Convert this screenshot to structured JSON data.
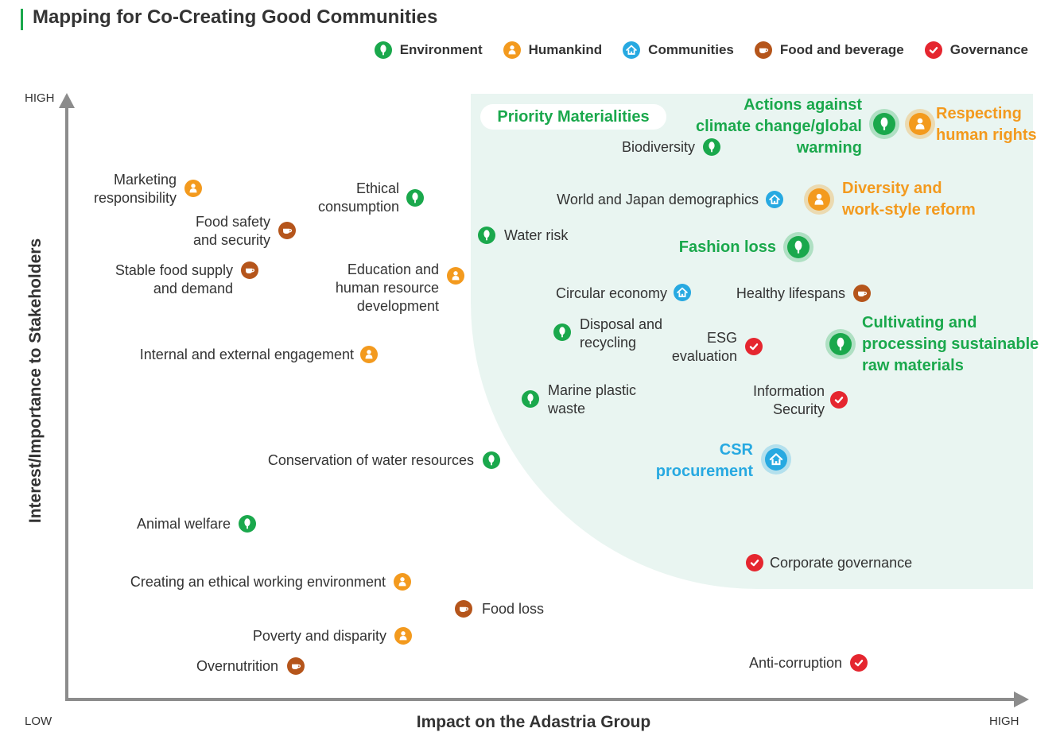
{
  "title": "Mapping for Co-Creating Good Communities",
  "colors": {
    "environment": "#1aa84c",
    "humankind": "#f39a1e",
    "communities": "#27a9e1",
    "food": "#b5551b",
    "governance": "#e5262f",
    "priority_zone": "#e9f5f1"
  },
  "legend": [
    {
      "label": "Environment",
      "category": "environment",
      "icon": "tree-icon"
    },
    {
      "label": "Humankind",
      "category": "humankind",
      "icon": "person-icon"
    },
    {
      "label": "Communities",
      "category": "communities",
      "icon": "house-icon"
    },
    {
      "label": "Food and beverage",
      "category": "food",
      "icon": "cup-icon"
    },
    {
      "label": "Governance",
      "category": "governance",
      "icon": "check-icon"
    }
  ],
  "priority_label": "Priority Materialities",
  "axes": {
    "y_label": "Interest/Importance to Stakeholders",
    "x_label": "Impact on the Adastria Group",
    "y_high": "HIGH",
    "origin_low": "LOW",
    "x_high": "HIGH"
  },
  "items": [
    {
      "label": "Actions against\nclimate change/global\nwarming",
      "category": "environment",
      "priority": true
    },
    {
      "label": "Respecting\nhuman rights",
      "category": "humankind",
      "priority": true
    },
    {
      "label": "Biodiversity",
      "category": "environment"
    },
    {
      "label": "Marketing\nresponsibility",
      "category": "humankind"
    },
    {
      "label": "Ethical\nconsumption",
      "category": "environment"
    },
    {
      "label": "World and Japan demographics",
      "category": "communities"
    },
    {
      "label": "Diversity and\nwork-style reform",
      "category": "humankind",
      "priority": true
    },
    {
      "label": "Food safety\nand security",
      "category": "food"
    },
    {
      "label": "Water risk",
      "category": "environment"
    },
    {
      "label": "Fashion loss",
      "category": "environment",
      "priority": true
    },
    {
      "label": "Stable food supply\nand demand",
      "category": "food"
    },
    {
      "label": "Education and\nhuman resource\ndevelopment",
      "category": "humankind"
    },
    {
      "label": "Circular economy",
      "category": "communities"
    },
    {
      "label": "Healthy lifespans",
      "category": "food"
    },
    {
      "label": "Disposal and\nrecycling",
      "category": "environment"
    },
    {
      "label": "ESG\nevaluation",
      "category": "governance"
    },
    {
      "label": "Cultivating and\nprocessing sustainable\nraw materials",
      "category": "environment",
      "priority": true
    },
    {
      "label": "Internal and external engagement",
      "category": "humankind"
    },
    {
      "label": "Marine plastic\nwaste",
      "category": "environment"
    },
    {
      "label": "Information\nSecurity",
      "category": "governance"
    },
    {
      "label": "CSR\nprocurement",
      "category": "communities",
      "priority": true
    },
    {
      "label": "Conservation of water resources",
      "category": "environment"
    },
    {
      "label": "Animal welfare",
      "category": "environment"
    },
    {
      "label": "Corporate governance",
      "category": "governance"
    },
    {
      "label": "Creating an ethical working environment",
      "category": "humankind"
    },
    {
      "label": "Food loss",
      "category": "food"
    },
    {
      "label": "Poverty and disparity",
      "category": "humankind"
    },
    {
      "label": "Overnutrition",
      "category": "food"
    },
    {
      "label": "Anti-corruption",
      "category": "governance"
    }
  ]
}
